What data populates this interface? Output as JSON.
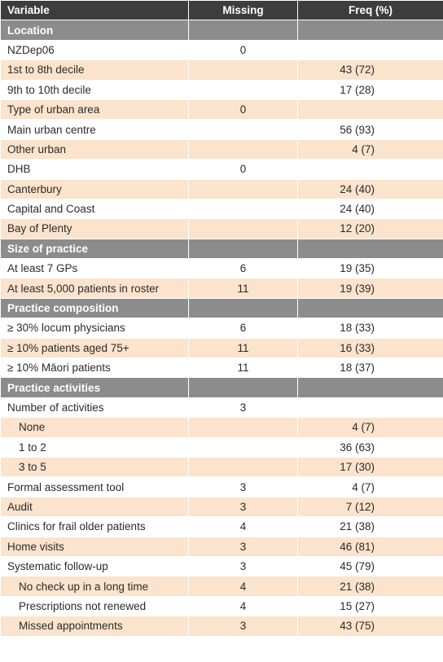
{
  "table": {
    "headers": [
      "Variable",
      "Missing",
      "Freq (%)"
    ],
    "rows": [
      {
        "kind": "section",
        "variable": "Location",
        "missing": "",
        "freq": ""
      },
      {
        "kind": "row",
        "variable": "NZDep06",
        "missing": "0",
        "freq": "",
        "indent": false
      },
      {
        "kind": "row",
        "variable": "1st to 8th decile",
        "missing": "",
        "freq": "43 (72)",
        "indent": false
      },
      {
        "kind": "row",
        "variable": "9th to 10th decile",
        "missing": "",
        "freq": "17 (28)",
        "indent": false
      },
      {
        "kind": "row",
        "variable": "Type of urban area",
        "missing": "0",
        "freq": "",
        "indent": false
      },
      {
        "kind": "row",
        "variable": "Main urban centre",
        "missing": "",
        "freq": "56 (93)",
        "indent": false
      },
      {
        "kind": "row",
        "variable": "Other urban",
        "missing": "",
        "freq": "4 (7)",
        "indent": false
      },
      {
        "kind": "row",
        "variable": "DHB",
        "missing": "0",
        "freq": "",
        "indent": false
      },
      {
        "kind": "row",
        "variable": "Canterbury",
        "missing": "",
        "freq": "24 (40)",
        "indent": false
      },
      {
        "kind": "row",
        "variable": "Capital and Coast",
        "missing": "",
        "freq": "24 (40)",
        "indent": false
      },
      {
        "kind": "row",
        "variable": "Bay of Plenty",
        "missing": "",
        "freq": "12 (20)",
        "indent": false
      },
      {
        "kind": "section",
        "variable": "Size of practice",
        "missing": "",
        "freq": ""
      },
      {
        "kind": "row",
        "variable": "At least 7 GPs",
        "missing": "6",
        "freq": "19 (35)",
        "indent": false
      },
      {
        "kind": "row",
        "variable": "At least 5,000 patients in roster",
        "missing": "11",
        "freq": "19 (39)",
        "indent": false
      },
      {
        "kind": "section",
        "variable": "Practice composition",
        "missing": "",
        "freq": ""
      },
      {
        "kind": "row",
        "variable": "≥ 30% locum physicians",
        "missing": "6",
        "freq": "18 (33)",
        "indent": false
      },
      {
        "kind": "row",
        "variable": "≥ 10% patients aged 75+",
        "missing": "11",
        "freq": "16 (33)",
        "indent": false
      },
      {
        "kind": "row",
        "variable": "≥ 10% Māori patients",
        "missing": "11",
        "freq": "18 (37)",
        "indent": false
      },
      {
        "kind": "section",
        "variable": "Practice activities",
        "missing": "",
        "freq": ""
      },
      {
        "kind": "row",
        "variable": "Number of activities",
        "missing": "3",
        "freq": "",
        "indent": false
      },
      {
        "kind": "row",
        "variable": "None",
        "missing": "",
        "freq": "4 (7)",
        "indent": true
      },
      {
        "kind": "row",
        "variable": "1 to 2",
        "missing": "",
        "freq": "36 (63)",
        "indent": true
      },
      {
        "kind": "row",
        "variable": "3 to 5",
        "missing": "",
        "freq": "17 (30)",
        "indent": true
      },
      {
        "kind": "row",
        "variable": "Formal assessment tool",
        "missing": "3",
        "freq": "4 (7)",
        "indent": false
      },
      {
        "kind": "row",
        "variable": "Audit",
        "missing": "3",
        "freq": "7 (12)",
        "indent": false
      },
      {
        "kind": "row",
        "variable": "Clinics for frail older patients",
        "missing": "4",
        "freq": "21 (38)",
        "indent": false
      },
      {
        "kind": "row",
        "variable": "Home visits",
        "missing": "3",
        "freq": "46 (81)",
        "indent": false
      },
      {
        "kind": "row",
        "variable": "Systematic follow-up",
        "missing": "3",
        "freq": "45 (79)",
        "indent": false
      },
      {
        "kind": "row",
        "variable": "No check up in a long time",
        "missing": "4",
        "freq": "21 (38)",
        "indent": true
      },
      {
        "kind": "row",
        "variable": "Prescriptions not renewed",
        "missing": "4",
        "freq": "15 (27)",
        "indent": true
      },
      {
        "kind": "row",
        "variable": "Missed appointments",
        "missing": "3",
        "freq": "43 (75)",
        "indent": true
      }
    ]
  }
}
